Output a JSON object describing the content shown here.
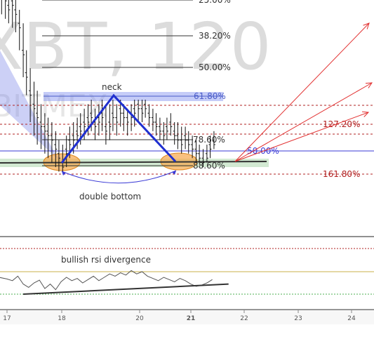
{
  "chart_data": {
    "type": "ohlc",
    "watermark": "XBT, 120",
    "watermark_sub": "BITMEX",
    "x_ticks": [
      "17",
      "18",
      "20",
      "21",
      "22",
      "23",
      "24"
    ],
    "x_ticks_highlight": "21",
    "fib_levels": [
      {
        "label": "25.00%",
        "color": "#333333"
      },
      {
        "label": "38.20%",
        "color": "#333333"
      },
      {
        "label": "50.00%",
        "color": "#333333"
      },
      {
        "label": "61.80%",
        "color": "#4a5cc8"
      },
      {
        "label": "78.60%",
        "color": "#333333"
      },
      {
        "label": "88.60%",
        "color": "#333333"
      },
      {
        "label": "127.20%",
        "color": "#b22222"
      },
      {
        "label": "161.80%",
        "color": "#b22222"
      },
      {
        "label": "50.00%",
        "color": "#3a3ad6"
      }
    ],
    "annotations": {
      "neck": "neck",
      "double_bottom": "double bottom",
      "rsi_divergence": "bullish rsi divergence"
    },
    "pattern": {
      "points": [
        [
          18.0,
          88.6
        ],
        [
          19.6,
          61.8
        ],
        [
          20.65,
          88.6
        ]
      ],
      "color": "#1f2fd0"
    },
    "price_candles": [
      [
        16.9,
        10,
        2,
        22
      ],
      [
        16.97,
        14,
        4,
        24
      ],
      [
        17.03,
        18,
        10,
        26
      ],
      [
        17.1,
        16,
        12,
        28
      ],
      [
        17.16,
        20,
        14,
        30
      ],
      [
        17.23,
        26,
        20,
        38
      ],
      [
        17.3,
        38,
        26,
        50
      ],
      [
        17.36,
        48,
        38,
        58
      ],
      [
        17.43,
        56,
        46,
        70
      ],
      [
        17.5,
        62,
        52,
        76
      ],
      [
        17.56,
        66,
        56,
        80
      ],
      [
        17.63,
        70,
        62,
        82
      ],
      [
        17.7,
        72,
        66,
        84
      ],
      [
        17.76,
        74,
        68,
        86
      ],
      [
        17.83,
        76,
        70,
        88
      ],
      [
        17.9,
        80,
        74,
        90
      ],
      [
        17.96,
        84,
        78,
        92
      ],
      [
        18.03,
        88,
        80,
        92
      ],
      [
        18.1,
        82,
        76,
        90
      ],
      [
        18.16,
        78,
        72,
        86
      ],
      [
        18.23,
        76,
        70,
        84
      ],
      [
        18.3,
        74,
        68,
        82
      ],
      [
        18.36,
        72,
        66,
        80
      ],
      [
        18.43,
        70,
        64,
        78
      ],
      [
        18.5,
        68,
        62,
        76
      ],
      [
        18.56,
        66,
        60,
        74
      ],
      [
        18.63,
        70,
        64,
        78
      ],
      [
        18.7,
        68,
        62,
        76
      ],
      [
        18.76,
        66,
        60,
        74
      ],
      [
        18.83,
        72,
        62,
        80
      ],
      [
        18.9,
        70,
        62,
        78
      ],
      [
        18.96,
        66,
        60,
        74
      ],
      [
        19.03,
        68,
        62,
        76
      ],
      [
        19.1,
        64,
        60,
        72
      ],
      [
        19.16,
        66,
        62,
        74
      ],
      [
        19.23,
        68,
        64,
        76
      ],
      [
        19.3,
        66,
        62,
        74
      ],
      [
        19.36,
        64,
        60,
        72
      ],
      [
        19.43,
        62,
        60,
        70
      ],
      [
        19.5,
        64,
        60,
        70
      ],
      [
        19.56,
        62,
        60,
        68
      ],
      [
        19.63,
        66,
        62,
        72
      ],
      [
        19.7,
        68,
        64,
        74
      ],
      [
        19.76,
        70,
        66,
        76
      ],
      [
        19.83,
        72,
        68,
        78
      ],
      [
        19.9,
        74,
        70,
        80
      ],
      [
        19.96,
        72,
        68,
        78
      ],
      [
        20.03,
        70,
        66,
        76
      ],
      [
        20.1,
        74,
        70,
        80
      ],
      [
        20.16,
        76,
        70,
        82
      ],
      [
        20.23,
        78,
        72,
        84
      ],
      [
        20.3,
        76,
        72,
        82
      ],
      [
        20.36,
        78,
        74,
        84
      ],
      [
        20.43,
        80,
        76,
        86
      ],
      [
        20.5,
        82,
        78,
        88
      ],
      [
        20.56,
        84,
        80,
        88
      ],
      [
        20.63,
        86,
        82,
        90
      ],
      [
        20.7,
        84,
        80,
        88
      ],
      [
        20.76,
        80,
        76,
        86
      ],
      [
        20.83,
        78,
        74,
        82
      ]
    ],
    "rsi": {
      "x": [
        16.7,
        16.85,
        17.0,
        17.1,
        17.2,
        17.3,
        17.4,
        17.5,
        17.6,
        17.7,
        17.8,
        17.9,
        18.0,
        18.1,
        18.2,
        18.3,
        18.4,
        18.5,
        18.6,
        18.7,
        18.8,
        18.9,
        19.0,
        19.1,
        19.2,
        19.3,
        19.4,
        19.5,
        19.6,
        19.7,
        19.8,
        19.9,
        20.0,
        20.1,
        20.2,
        20.3,
        20.4,
        20.5,
        20.6,
        20.7,
        20.8
      ],
      "y": [
        48,
        50,
        47,
        44,
        52,
        38,
        32,
        40,
        45,
        30,
        38,
        28,
        42,
        50,
        44,
        48,
        40,
        46,
        52,
        44,
        50,
        56,
        52,
        58,
        54,
        62,
        56,
        60,
        52,
        48,
        44,
        50,
        46,
        42,
        48,
        44,
        38,
        34,
        36,
        40,
        46
      ],
      "divergence_line": [
        [
          17.3,
          20
        ],
        [
          21.1,
          38
        ]
      ]
    }
  }
}
